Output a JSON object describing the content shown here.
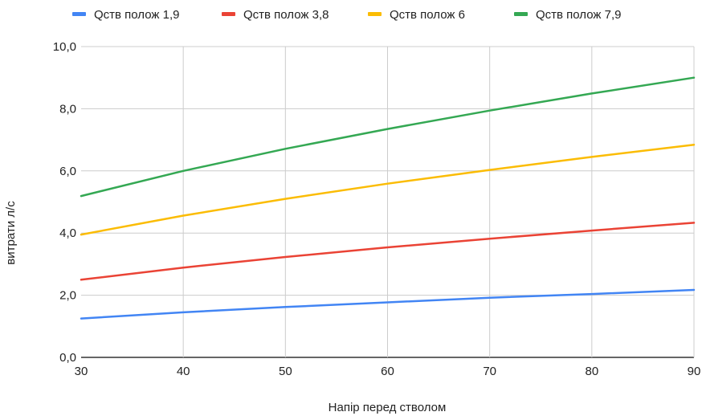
{
  "chart_data": {
    "type": "line",
    "title": "",
    "xlabel": "Напір перед стволом",
    "ylabel": "витрати л/с",
    "x": [
      30,
      40,
      50,
      60,
      70,
      80,
      90
    ],
    "xlim": [
      30,
      90
    ],
    "ylim": [
      0,
      10
    ],
    "x_ticks": [
      "30",
      "40",
      "50",
      "60",
      "70",
      "80",
      "90"
    ],
    "y_ticks": [
      "0,0",
      "2,0",
      "4,0",
      "6,0",
      "8,0",
      "10,0"
    ],
    "grid": true,
    "legend_position": "top",
    "series": [
      {
        "name": "Qств полож 1,9",
        "color": "#4285f4",
        "values": [
          1.25,
          1.45,
          1.62,
          1.77,
          1.92,
          2.04,
          2.17
        ]
      },
      {
        "name": "Qств полож 3,8",
        "color": "#ea4335",
        "values": [
          2.5,
          2.89,
          3.23,
          3.54,
          3.82,
          4.08,
          4.33
        ]
      },
      {
        "name": "Qств полож 6",
        "color": "#fbbc04",
        "values": [
          3.95,
          4.56,
          5.1,
          5.59,
          6.03,
          6.45,
          6.84
        ]
      },
      {
        "name": "Qств полож 7,9",
        "color": "#34a853",
        "values": [
          5.19,
          6.0,
          6.71,
          7.35,
          7.94,
          8.49,
          9.0
        ]
      }
    ]
  }
}
